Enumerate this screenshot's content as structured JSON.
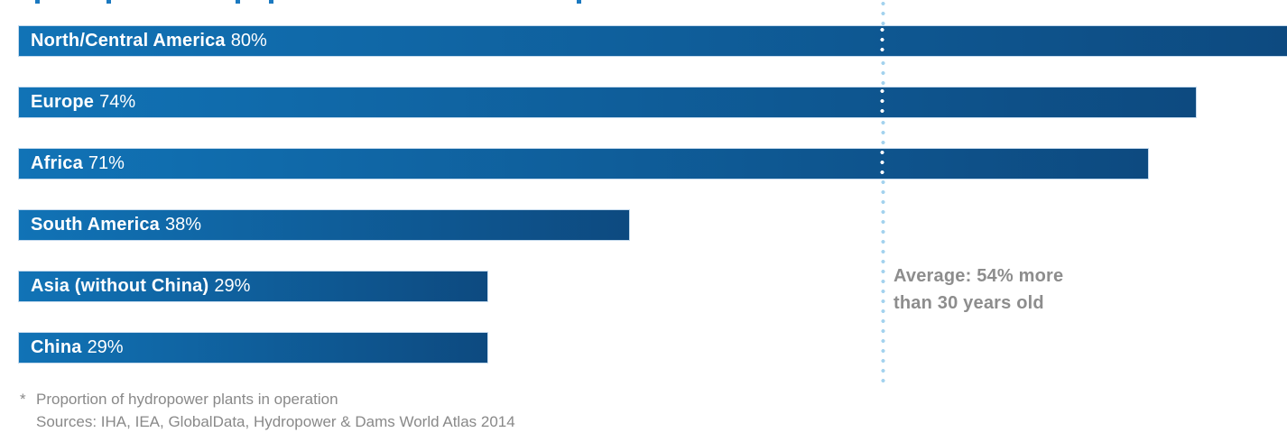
{
  "chart_data": {
    "type": "bar",
    "orientation": "horizontal",
    "title_note": "title cropped out of frame (only letter descenders visible)",
    "categories": [
      "North/Central America",
      "Europe",
      "Africa",
      "South America",
      "Asia (without China)",
      "China"
    ],
    "values": [
      80,
      74,
      71,
      38,
      29,
      29
    ],
    "xlim": [
      0,
      100
    ],
    "unit": "%",
    "grid": false,
    "bars": [
      {
        "label": "North/Central America",
        "value": 80,
        "value_label": "80%"
      },
      {
        "label": "Europe",
        "value": 74,
        "value_label": "74%"
      },
      {
        "label": "Africa",
        "value": 71,
        "value_label": "71%"
      },
      {
        "label": "South America",
        "value": 38,
        "value_label": "38%"
      },
      {
        "label": "Asia (without China)",
        "value": 29,
        "value_label": "29%"
      },
      {
        "label": "China",
        "value": 29,
        "value_label": "29%"
      }
    ],
    "average_line": {
      "value": 54,
      "style": "vertical dotted",
      "label_line1": "Average: 54% more",
      "label_line2": "than 30 years old"
    }
  },
  "footnote": {
    "marker": "*",
    "line1": "Proportion of hydropower plants in operation",
    "line2": "Sources: IHA, IEA, GlobalData, Hydropower & Dams World Atlas 2014"
  },
  "colors": {
    "bar_gradient_start": "#1173b6",
    "bar_gradient_end": "#0d4a80",
    "bar_border": "#c6dbee",
    "bar_text": "#ffffff",
    "dotted_line_on_white": "#a3d2ee",
    "dotted_line_on_bar": "#ffffff",
    "average_text": "#8d8d8d",
    "footnote_text": "#898989",
    "title_fragment": "#1b79c0"
  }
}
